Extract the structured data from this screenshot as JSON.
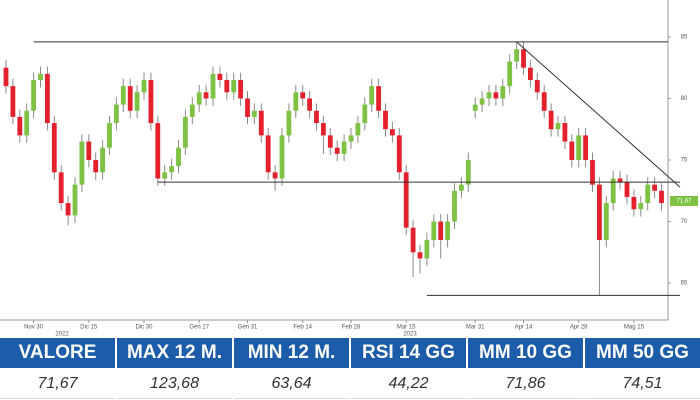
{
  "chart_data": {
    "type": "candlestick",
    "categories": [
      null,
      null,
      null,
      null,
      "Nov 30",
      null,
      null,
      null,
      null,
      null,
      null,
      null,
      "Dic 15",
      null,
      null,
      null,
      null,
      null,
      null,
      null,
      "Dic 30",
      null,
      null,
      null,
      null,
      null,
      null,
      null,
      "Gen 17",
      null,
      null,
      null,
      null,
      null,
      null,
      "Gen 31",
      null,
      null,
      null,
      null,
      null,
      null,
      null,
      "Feb 14",
      null,
      null,
      null,
      null,
      null,
      null,
      "Feb 28",
      null,
      null,
      null,
      null,
      null,
      null,
      null,
      "Mar 15",
      null,
      null,
      null,
      null,
      null,
      null,
      null,
      null,
      null,
      "Mar 31",
      null,
      null,
      null,
      null,
      null,
      null,
      "Apr 14",
      null,
      null,
      null,
      null,
      null,
      null,
      null,
      "Apr 28",
      null,
      null,
      null,
      null,
      null,
      null,
      null,
      "Mag 15",
      null,
      null,
      null,
      null
    ],
    "years": [
      "2022",
      "2023"
    ],
    "open": [
      82.5,
      81,
      78.5,
      77,
      79,
      81.5,
      82,
      78,
      74,
      71.5,
      70.5,
      73,
      76.5,
      75,
      74,
      76,
      78,
      79.5,
      81,
      79,
      80.5,
      81.5,
      78,
      73.5,
      74,
      74.5,
      76,
      78.5,
      79.5,
      80.5,
      80,
      82,
      81.5,
      80.5,
      81.5,
      80,
      78.5,
      79,
      77,
      74,
      73.5,
      77,
      79,
      80.5,
      80,
      79,
      78,
      77,
      76,
      75.5,
      76.5,
      77,
      78,
      79.5,
      81,
      79,
      77.5,
      77,
      74,
      69.5,
      67.5,
      67,
      68.5,
      70,
      68.5,
      70,
      72.5,
      73,
      79,
      79.5,
      80,
      80.5,
      80,
      81,
      83,
      84,
      82.5,
      81.5,
      80.5,
      79,
      77.5,
      78,
      76.5,
      75,
      77,
      75,
      73,
      68.5,
      71.5,
      73.5,
      73.2,
      72,
      71,
      71.5,
      73,
      72.5
    ],
    "high": [
      83.1,
      81.6,
      79.1,
      79.6,
      82.1,
      82.6,
      82.6,
      78.6,
      74.6,
      72.1,
      73.6,
      77.1,
      77.1,
      75.6,
      76.6,
      78.6,
      80.1,
      81.6,
      81.6,
      81.1,
      82.1,
      82.1,
      78.6,
      74.6,
      75.1,
      76.6,
      79.1,
      80.1,
      81.1,
      81.1,
      82.6,
      82.6,
      82.1,
      82.1,
      82.1,
      80.6,
      79.6,
      79.6,
      77.6,
      74.6,
      77.6,
      79.6,
      81.1,
      81.1,
      80.6,
      79.6,
      78.6,
      77.6,
      76.6,
      77.1,
      77.6,
      78.6,
      80.1,
      81.6,
      81.6,
      79.6,
      78.1,
      77.6,
      74.6,
      70.1,
      68.1,
      69.1,
      70.6,
      70.6,
      70.6,
      73.1,
      73.6,
      75.6,
      80.1,
      80.6,
      81.1,
      81.1,
      81.6,
      83.6,
      84.6,
      84.6,
      83.1,
      82.1,
      81.1,
      79.6,
      78.6,
      78.6,
      77.1,
      77.6,
      77.6,
      75.6,
      73.6,
      72.1,
      74.1,
      74.1,
      73.8,
      72.6,
      72.1,
      73.6,
      73.6,
      73.1
    ],
    "low": [
      80.4,
      77.9,
      76.4,
      76.4,
      78.4,
      80.9,
      77.4,
      73.4,
      70.9,
      69.7,
      69.9,
      72.4,
      74.4,
      73.4,
      73.4,
      75.4,
      77.4,
      78.9,
      78.4,
      78.4,
      79.9,
      77.4,
      72.9,
      72.9,
      73.4,
      73.9,
      75.4,
      77.9,
      78.9,
      79.4,
      79.4,
      80.9,
      79.9,
      79.9,
      79.4,
      77.9,
      77.9,
      76.4,
      73.4,
      72.5,
      72.9,
      76.4,
      78.4,
      79.4,
      78.4,
      77.4,
      75.5,
      75.4,
      74.9,
      74.9,
      75.9,
      76.4,
      77.4,
      78.9,
      78.4,
      76.9,
      76.4,
      73.4,
      68.9,
      65.5,
      65.8,
      66.4,
      67.9,
      67,
      67.9,
      69.4,
      71.9,
      72.4,
      78.4,
      78.9,
      79.4,
      79.4,
      79.4,
      80.4,
      82.4,
      81.9,
      80.9,
      79.9,
      78.4,
      76.9,
      76.9,
      75.9,
      74.4,
      74.4,
      74.4,
      72.4,
      64,
      67.9,
      70.9,
      72.6,
      71.4,
      70.4,
      70.4,
      70.9,
      71.9,
      70.9
    ],
    "close": [
      81,
      78.5,
      77,
      79,
      81.5,
      82,
      78,
      74,
      71.5,
      70.5,
      73,
      76.5,
      75,
      74,
      76,
      78,
      79.5,
      81,
      79,
      80.5,
      81.5,
      78,
      73.5,
      74,
      74.5,
      76,
      78.5,
      79.5,
      80.5,
      80,
      82,
      81.5,
      80.5,
      81.5,
      80,
      78.5,
      79,
      77,
      74,
      73.5,
      77,
      79,
      80.5,
      80,
      79,
      78,
      77,
      76,
      75.5,
      76.5,
      77,
      78,
      79.5,
      81,
      79,
      77.5,
      77,
      74,
      69.5,
      67.5,
      67,
      68.5,
      70,
      68.5,
      70,
      72.5,
      73,
      75,
      79.5,
      80,
      80.5,
      80,
      81,
      83,
      84,
      82.5,
      81.5,
      80.5,
      79,
      77.5,
      78,
      76.5,
      75,
      77,
      75,
      73,
      68.5,
      71.5,
      73.5,
      73.2,
      72,
      71,
      71.5,
      73,
      72.5,
      71.5
    ],
    "up_color": "#7dc242",
    "down_color": "#e3202c",
    "levels": [
      84.6,
      73.2,
      64
    ],
    "trendline": [
      84.6,
      72.8
    ],
    "last_price": 71.67,
    "last_color": "#7dc242",
    "ylim": [
      62,
      88
    ],
    "yticks": [
      85,
      80,
      75,
      70,
      65
    ]
  },
  "table": {
    "header": [
      "VALORE",
      "MAX 12 M.",
      "MIN 12 M.",
      "RSI 14 GG",
      "MM 10 GG",
      "MM 50 GG"
    ],
    "row": [
      "71,67",
      "123,68",
      "63,64",
      "44,22",
      "71,86",
      "74,51"
    ]
  }
}
